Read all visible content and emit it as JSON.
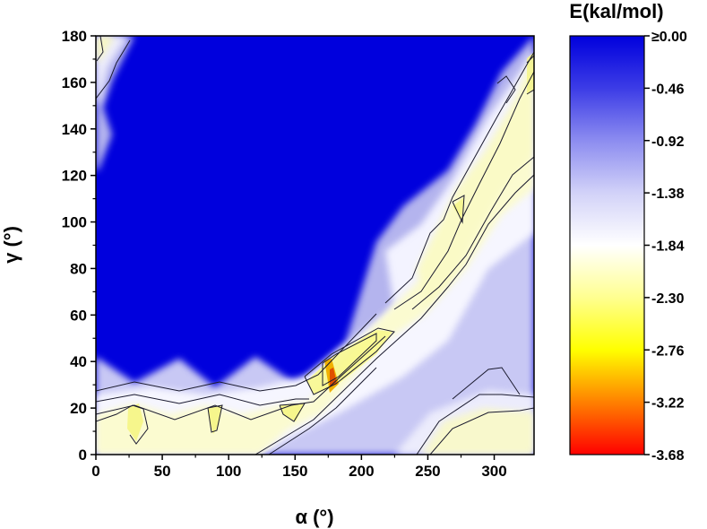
{
  "chart_data": {
    "type": "heatmap",
    "subtype": "contour map",
    "xlabel": "α (°)",
    "ylabel": "γ (°)",
    "xlim": [
      0,
      330
    ],
    "ylim": [
      0,
      180
    ],
    "x_ticks": [
      0,
      50,
      100,
      150,
      200,
      250,
      300
    ],
    "y_ticks": [
      0,
      20,
      40,
      60,
      80,
      100,
      120,
      140,
      160,
      180
    ],
    "colorbar": {
      "title": "E(kal/mol)",
      "levels": [
        "≥0.00",
        "-0.46",
        "-0.92",
        "-1.38",
        "-1.84",
        "-2.30",
        "-2.76",
        "-3.22",
        "-3.68"
      ],
      "colors": [
        "#0000dd",
        "#ffffff",
        "#ffff00",
        "#ff0000"
      ]
    },
    "grid": false,
    "regions": [
      {
        "name": "lower-left basin",
        "energy_approx": -2.3,
        "alpha_range": [
          0,
          160
        ],
        "gamma_range": [
          0,
          25
        ]
      },
      {
        "name": "diagonal valley",
        "energy_approx": -2.3,
        "alpha_range": [
          160,
          330
        ],
        "gamma_range": [
          20,
          175
        ]
      },
      {
        "name": "global minimum",
        "energy_approx": -3.68,
        "alpha": 180,
        "gamma": 33
      },
      {
        "name": "lower-right basin",
        "energy_approx": -2.0,
        "alpha_range": [
          240,
          330
        ],
        "gamma_range": [
          0,
          30
        ]
      },
      {
        "name": "upper-left corner",
        "energy_approx": -1.6,
        "alpha_range": [
          0,
          20
        ],
        "gamma_range": [
          140,
          180
        ]
      }
    ]
  }
}
